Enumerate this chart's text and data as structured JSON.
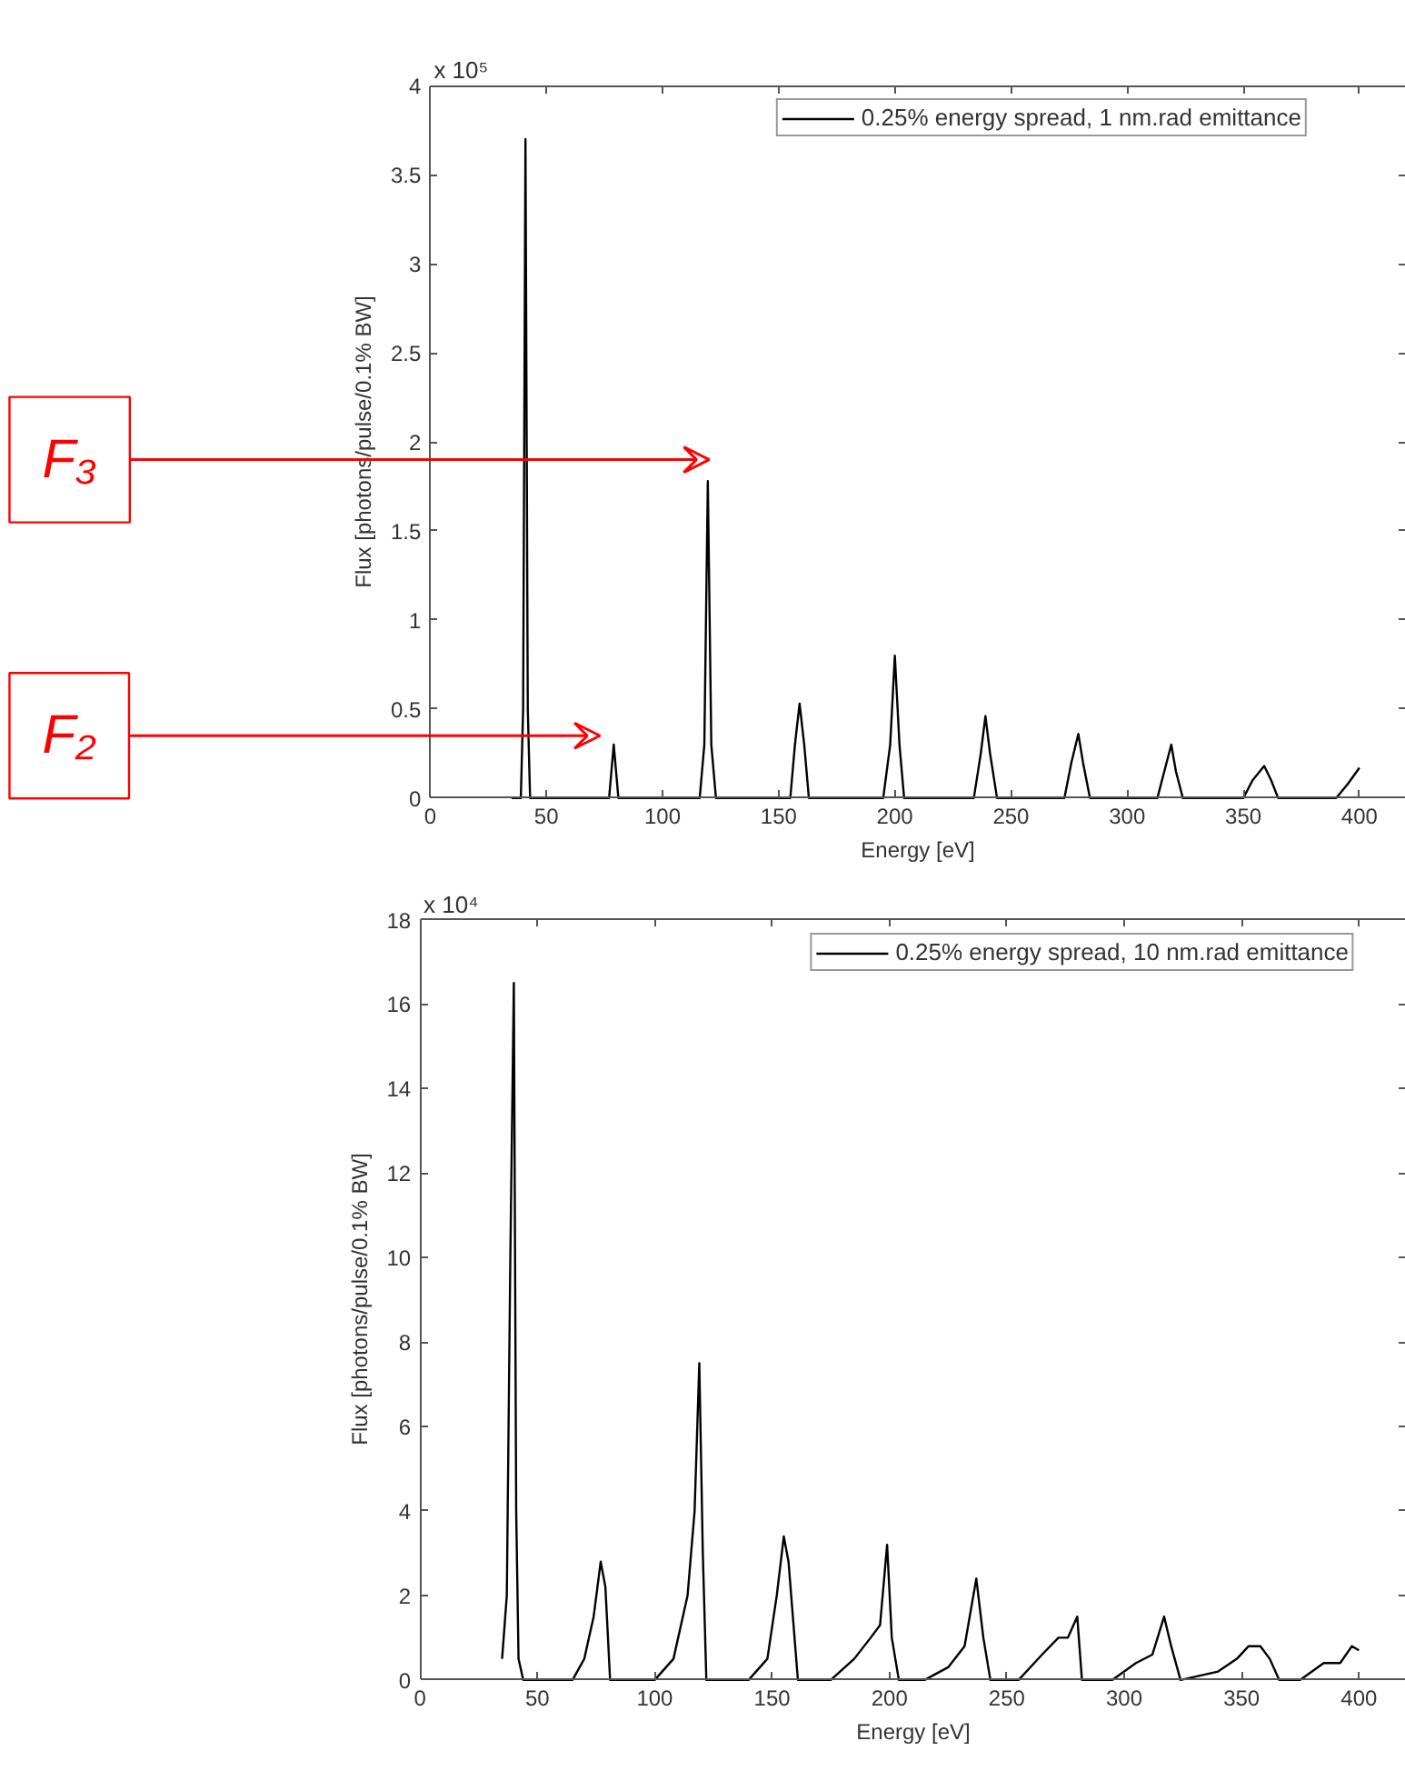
{
  "chart_data": [
    {
      "type": "line",
      "xlabel": "Energy [eV]",
      "ylabel": "Flux [photons/pulse/0.1% BW]",
      "xlim": [
        0,
        420
      ],
      "xticks": [
        0,
        50,
        100,
        150,
        200,
        250,
        300,
        350,
        400
      ],
      "ylim": [
        0,
        4
      ],
      "yticks": [
        0,
        0.5,
        1,
        1.5,
        2,
        2.5,
        3,
        3.5,
        4
      ],
      "grid": false,
      "legend": "top right",
      "marker": "none",
      "line_style": "solid",
      "annotations": [
        "x 10⁵",
        "F₃",
        "F₂"
      ],
      "series": [
        {
          "name": "0.25% energy spread, 1 nm.rad emittance",
          "color": "#000000",
          "x": [
            35,
            39,
            40,
            41,
            42,
            43,
            77,
            79,
            81,
            116,
            118,
            119.5,
            121,
            123,
            155,
            157,
            159,
            161,
            163,
            195,
            198,
            200,
            202,
            204,
            234,
            237,
            239,
            241,
            244,
            273,
            276,
            279,
            281,
            284,
            313,
            316,
            319,
            321,
            324,
            350,
            354,
            359,
            362,
            365,
            390,
            395,
            400
          ],
          "values": [
            0,
            0,
            0.5,
            3.7,
            0.5,
            0,
            0,
            0.3,
            0,
            0,
            0.3,
            1.78,
            0.3,
            0,
            0,
            0.3,
            0.53,
            0.3,
            0,
            0,
            0.3,
            0.8,
            0.3,
            0,
            0,
            0.25,
            0.46,
            0.25,
            0,
            0,
            0.2,
            0.36,
            0.2,
            0,
            0,
            0.15,
            0.3,
            0.15,
            0,
            0,
            0.1,
            0.18,
            0.1,
            0,
            0,
            0.08,
            0.17
          ]
        }
      ]
    },
    {
      "type": "line",
      "xlabel": "Energy [eV]",
      "ylabel": "Flux [photons/pulse/0.1% BW]",
      "xlim": [
        0,
        420
      ],
      "xticks": [
        0,
        50,
        100,
        150,
        200,
        250,
        300,
        350,
        400
      ],
      "ylim": [
        0,
        18
      ],
      "yticks": [
        0,
        2,
        4,
        6,
        8,
        10,
        12,
        14,
        16,
        18
      ],
      "grid": false,
      "legend": "top right",
      "marker": "none",
      "line_style": "solid",
      "annotations": [
        "x 10⁴"
      ],
      "series": [
        {
          "name": "0.25% energy spread, 10 nm.rad emittance",
          "color": "#000000",
          "x": [
            35,
            37,
            38.5,
            40,
            41,
            42,
            44,
            65,
            70,
            74,
            77,
            79,
            81,
            100,
            108,
            114,
            117,
            119,
            120.5,
            122,
            140,
            148,
            152,
            155,
            157,
            161,
            175,
            185,
            192,
            196,
            199,
            201,
            204,
            215,
            225,
            232,
            237,
            240,
            243,
            255,
            265,
            272,
            276,
            280,
            282,
            295,
            305,
            312,
            317,
            320,
            324,
            340,
            348,
            353,
            358,
            362,
            366,
            375,
            385,
            392,
            397,
            400
          ],
          "values": [
            0.5,
            2,
            10,
            16.5,
            4,
            0.5,
            0,
            0,
            0.5,
            1.5,
            2.8,
            2.2,
            0,
            0,
            0.5,
            2,
            4,
            7.5,
            3,
            0,
            0,
            0.5,
            2,
            3.4,
            2.8,
            0,
            0,
            0.5,
            1,
            1.3,
            3.2,
            1,
            0,
            0,
            0.3,
            0.8,
            2.4,
            1,
            0,
            0,
            0.6,
            1,
            1,
            1.5,
            0,
            0,
            0.4,
            0.6,
            1.5,
            0.8,
            0,
            0.2,
            0.5,
            0.8,
            0.8,
            0.5,
            0,
            0,
            0.4,
            0.4,
            0.8,
            0.7
          ]
        }
      ]
    }
  ]
}
